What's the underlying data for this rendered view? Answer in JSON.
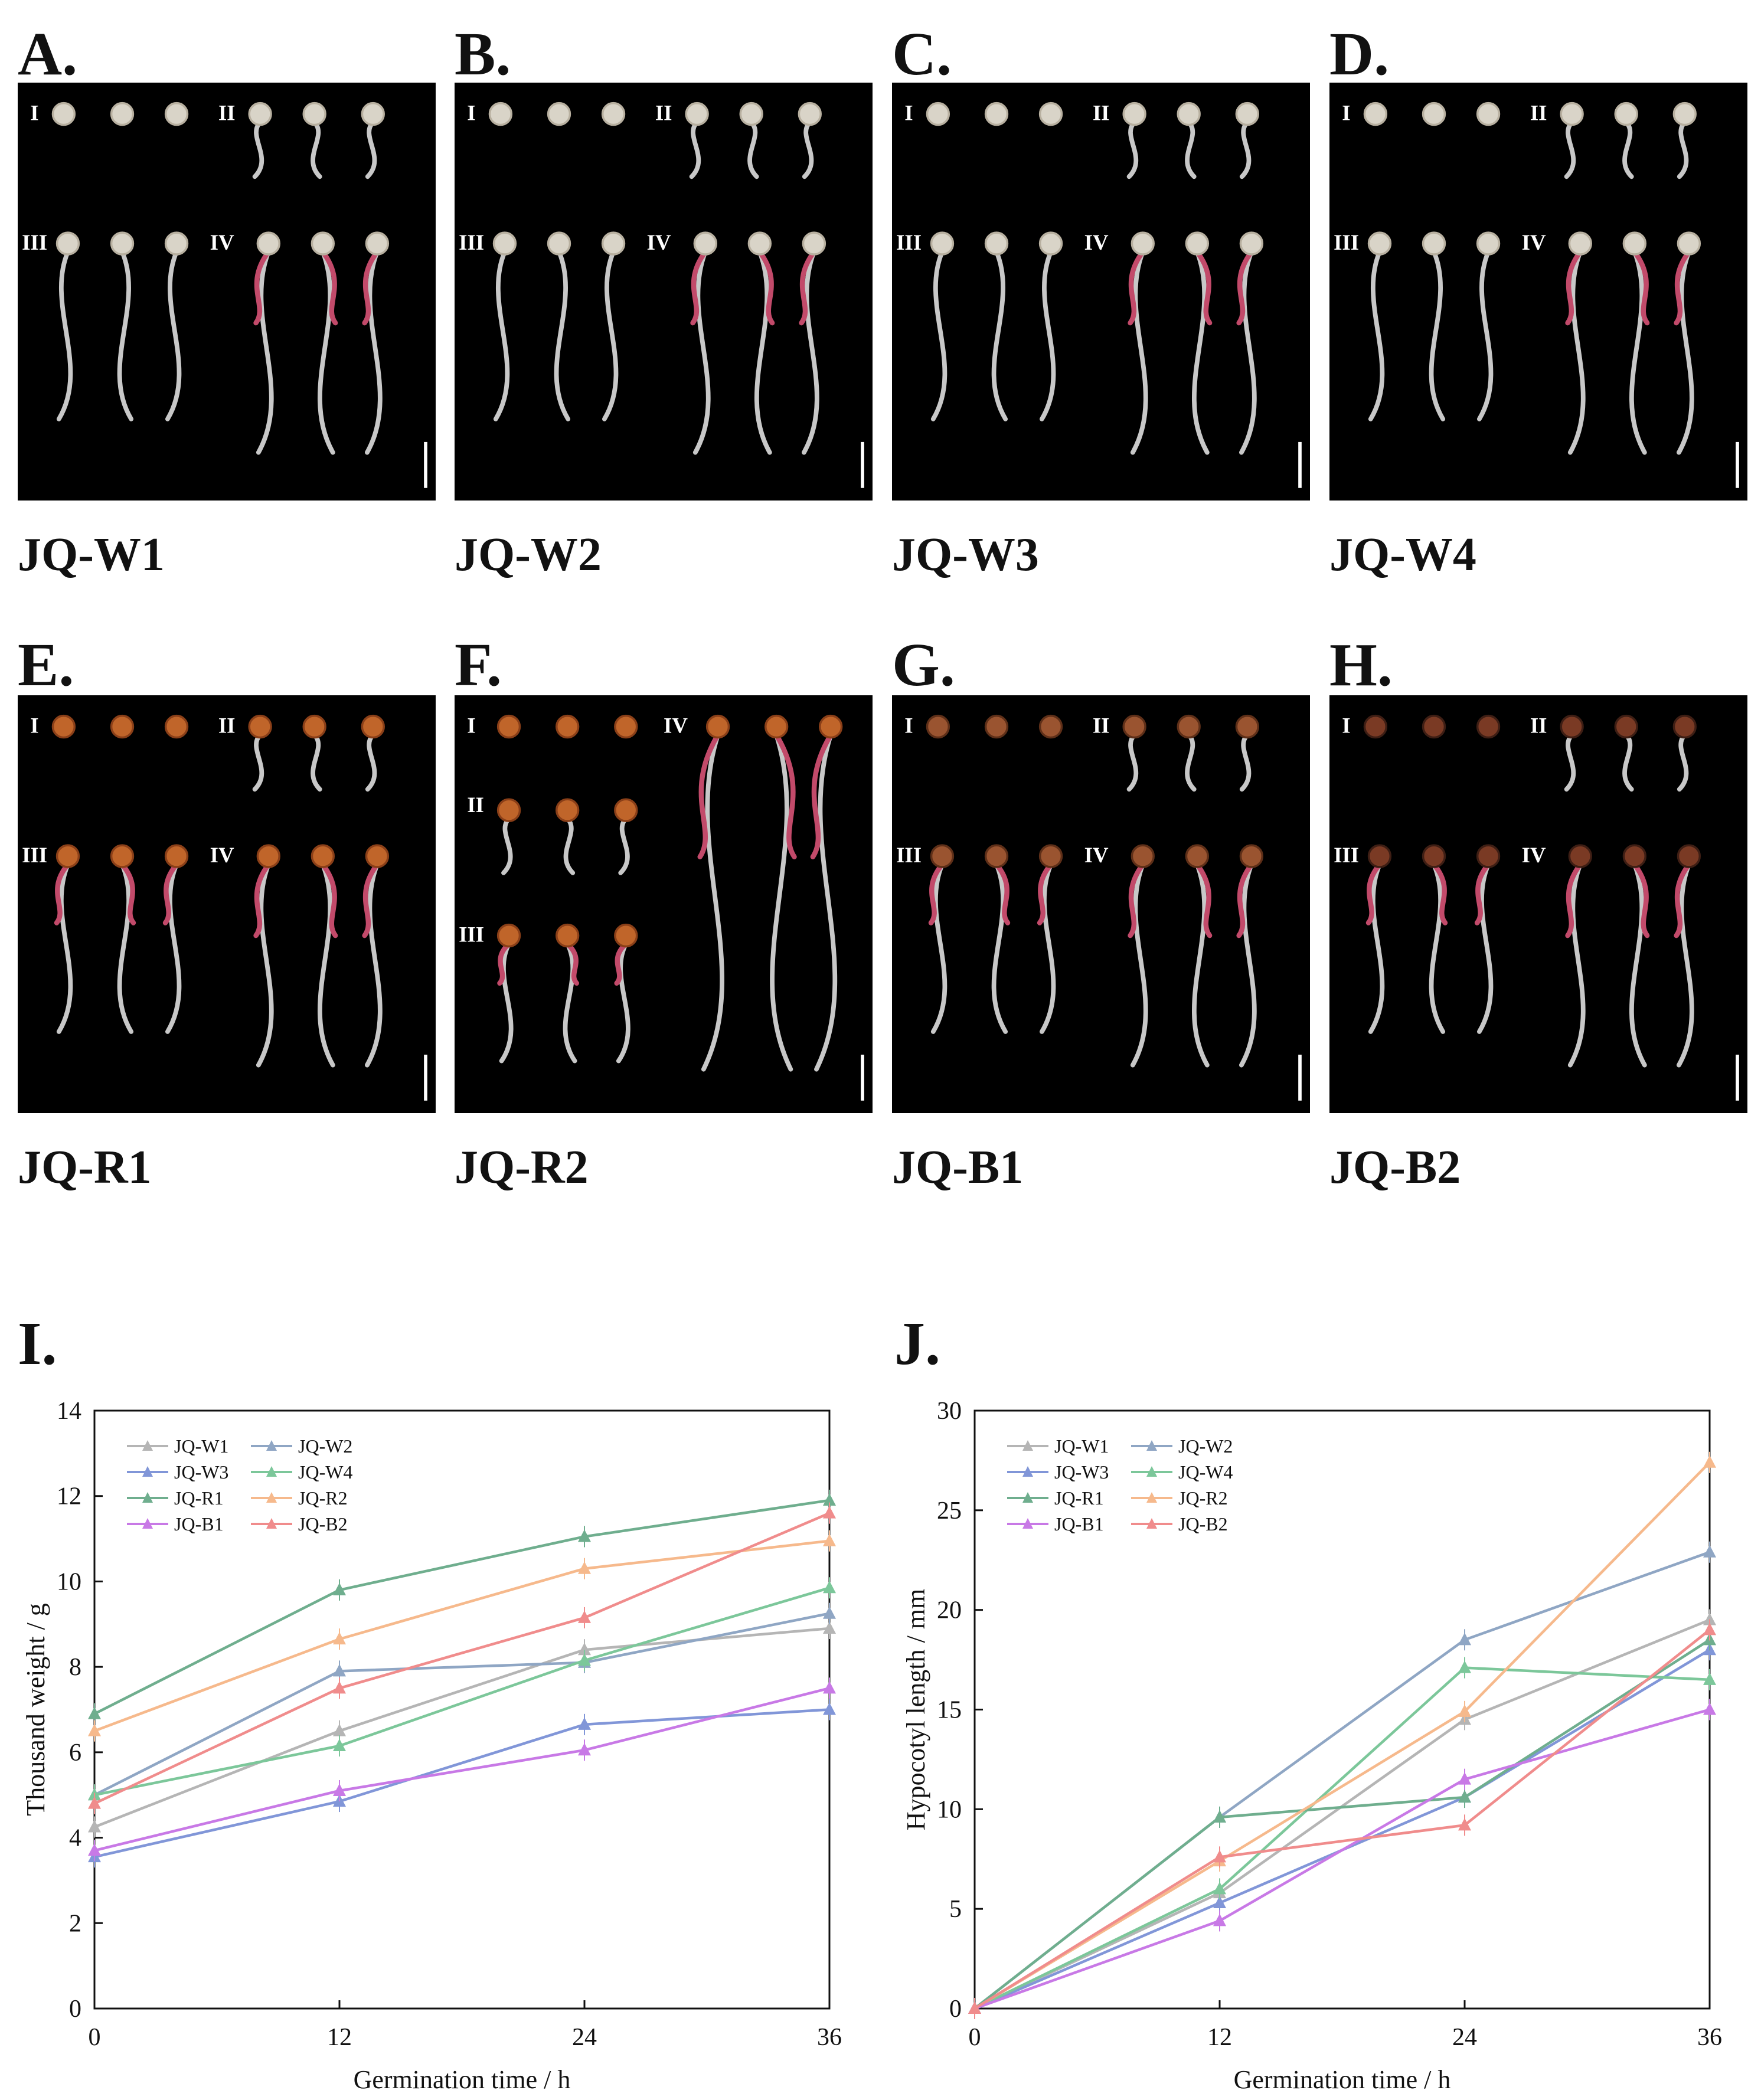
{
  "panels": [
    {
      "letter": "A.",
      "sample": "JQ-W1",
      "layout": "std",
      "palette": "white"
    },
    {
      "letter": "B.",
      "sample": "JQ-W2",
      "layout": "std",
      "palette": "white"
    },
    {
      "letter": "C.",
      "sample": "JQ-W3",
      "layout": "std",
      "palette": "white"
    },
    {
      "letter": "D.",
      "sample": "JQ-W4",
      "layout": "std",
      "palette": "white"
    },
    {
      "letter": "E.",
      "sample": "JQ-R1",
      "layout": "std",
      "palette": "red"
    },
    {
      "letter": "F.",
      "sample": "JQ-R2",
      "layout": "r2",
      "palette": "red"
    },
    {
      "letter": "G.",
      "sample": "JQ-B1",
      "layout": "std",
      "palette": "brown"
    },
    {
      "letter": "H.",
      "sample": "JQ-B2",
      "layout": "std",
      "palette": "dark"
    }
  ],
  "stage_labels": [
    "I",
    "II",
    "III",
    "IV"
  ],
  "charts": [
    {
      "letter": "I.",
      "chart_data": {
        "type": "line",
        "xlabel": "Germination time / h",
        "ylabel": "Thousand weight / g",
        "x": [
          0,
          12,
          24,
          36
        ],
        "xlim": [
          0,
          36
        ],
        "ylim": [
          0,
          14
        ],
        "xticks": [
          0,
          12,
          24,
          36
        ],
        "yticks": [
          0,
          2,
          4,
          6,
          8,
          10,
          12,
          14
        ],
        "legend": "top-left",
        "grid": false,
        "series": [
          {
            "name": "JQ-W1",
            "color": "#b5b5b5",
            "values": [
              4.25,
              6.5,
              8.4,
              8.9
            ]
          },
          {
            "name": "JQ-W2",
            "color": "#8fa6c4",
            "values": [
              5.0,
              7.9,
              8.1,
              9.25
            ]
          },
          {
            "name": "JQ-W3",
            "color": "#8196d8",
            "values": [
              3.55,
              4.85,
              6.65,
              7.0
            ]
          },
          {
            "name": "JQ-W4",
            "color": "#7cc79a",
            "values": [
              5.0,
              6.15,
              8.15,
              9.85
            ]
          },
          {
            "name": "JQ-R1",
            "color": "#6fae8e",
            "values": [
              6.9,
              9.8,
              11.05,
              11.9
            ]
          },
          {
            "name": "JQ-R2",
            "color": "#f6b98c",
            "values": [
              6.5,
              8.65,
              10.3,
              10.95
            ]
          },
          {
            "name": "JQ-B1",
            "color": "#c879e6",
            "values": [
              3.7,
              5.1,
              6.05,
              7.5
            ]
          },
          {
            "name": "JQ-B2",
            "color": "#f08c8c",
            "values": [
              4.8,
              7.5,
              9.15,
              11.6
            ]
          }
        ]
      }
    },
    {
      "letter": "J.",
      "chart_data": {
        "type": "line",
        "xlabel": "Germination time / h",
        "ylabel": "Hypocotyl length / mm",
        "x": [
          0,
          12,
          24,
          36
        ],
        "xlim": [
          0,
          36
        ],
        "ylim": [
          0,
          30
        ],
        "xticks": [
          0,
          12,
          24,
          36
        ],
        "yticks": [
          0,
          5,
          10,
          15,
          20,
          25,
          30
        ],
        "legend": "top-left",
        "grid": false,
        "series": [
          {
            "name": "JQ-W1",
            "color": "#b5b5b5",
            "values": [
              0,
              5.8,
              14.5,
              19.5
            ]
          },
          {
            "name": "JQ-W2",
            "color": "#8fa6c4",
            "values": [
              0,
              9.6,
              18.5,
              22.9
            ]
          },
          {
            "name": "JQ-W3",
            "color": "#8196d8",
            "values": [
              0,
              5.3,
              10.6,
              18.0
            ]
          },
          {
            "name": "JQ-W4",
            "color": "#7cc79a",
            "values": [
              0,
              6.0,
              17.1,
              16.5
            ]
          },
          {
            "name": "JQ-R1",
            "color": "#6fae8e",
            "values": [
              0,
              9.6,
              10.6,
              18.5
            ]
          },
          {
            "name": "JQ-R2",
            "color": "#f6b98c",
            "values": [
              0,
              7.4,
              14.9,
              27.4
            ]
          },
          {
            "name": "JQ-B1",
            "color": "#c879e6",
            "values": [
              0,
              4.4,
              11.5,
              15.0
            ]
          },
          {
            "name": "JQ-B2",
            "color": "#f08c8c",
            "values": [
              0,
              7.6,
              9.2,
              19.0
            ]
          }
        ]
      }
    }
  ]
}
